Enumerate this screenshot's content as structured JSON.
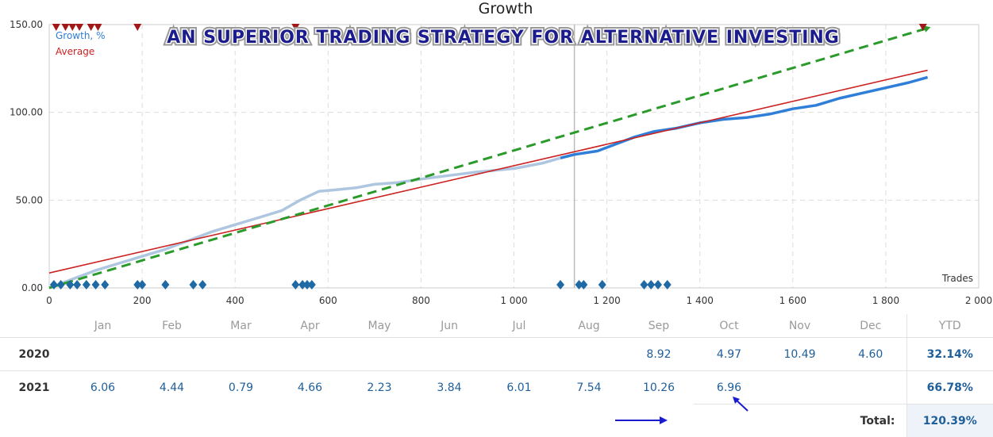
{
  "chart_data": {
    "type": "line",
    "title": "Growth",
    "banner": "AN SUPERIOR TRADING STRATEGY FOR ALTERNATIVE INVESTING",
    "xlabel": "Trades",
    "ylabel": "",
    "xlim": [
      0,
      2000
    ],
    "ylim": [
      0,
      150
    ],
    "x_ticks": [
      0,
      200,
      400,
      600,
      800,
      1000,
      1200,
      1400,
      1600,
      1800,
      2000
    ],
    "x_tick_labels": [
      "0",
      "200",
      "400",
      "600",
      "800",
      "1 000",
      "1 200",
      "1 400",
      "1 600",
      "1 800",
      "2 000"
    ],
    "y_ticks": [
      0,
      50,
      100,
      150
    ],
    "y_tick_labels": [
      "0.00",
      "50.00",
      "100.00",
      "150.00"
    ],
    "grid": true,
    "legend_position": "top-left",
    "marker_x": 1130,
    "series": [
      {
        "name": "Growth, %",
        "color": "#2f7ed8",
        "x": [
          0,
          30,
          60,
          100,
          150,
          200,
          250,
          300,
          350,
          400,
          450,
          500,
          540,
          580,
          620,
          660,
          700,
          750,
          800,
          860,
          920,
          1000,
          1060,
          1100,
          1130,
          1180,
          1220,
          1260,
          1300,
          1350,
          1400,
          1450,
          1500,
          1550,
          1600,
          1650,
          1700,
          1750,
          1800,
          1850,
          1890
        ],
        "y": [
          0,
          3,
          6,
          10,
          14,
          18,
          22,
          27,
          32,
          36,
          40,
          44,
          50,
          55,
          56,
          57,
          59,
          60,
          62,
          64,
          66,
          68,
          71,
          74,
          76,
          78,
          82,
          86,
          89,
          91,
          94,
          96,
          97,
          99,
          102,
          104,
          108,
          111,
          114,
          117,
          120
        ]
      },
      {
        "name": "Average",
        "color": "#cc2222",
        "x": [
          0,
          1890
        ],
        "y": [
          8.5,
          124
        ]
      },
      {
        "name": "",
        "color": "#2a9a2a",
        "x": [
          0,
          1890
        ],
        "y": [
          0,
          148
        ]
      }
    ],
    "deposit_markers_x": [
      10,
      25,
      45,
      60,
      80,
      100,
      120,
      190,
      200,
      250,
      310,
      330,
      530,
      545,
      555,
      565,
      1100,
      1140,
      1150,
      1190,
      1280,
      1295,
      1310,
      1330
    ],
    "withdrawal_markers_x": [
      15,
      35,
      50,
      65,
      90,
      105,
      190,
      530,
      1880
    ]
  },
  "monthly_table": {
    "months": [
      "Jan",
      "Feb",
      "Mar",
      "Apr",
      "May",
      "Jun",
      "Jul",
      "Aug",
      "Sep",
      "Oct",
      "Nov",
      "Dec"
    ],
    "ytd_label": "YTD",
    "rows": [
      {
        "year": "2020",
        "values": [
          "",
          "",
          "",
          "",
          "",
          "",
          "",
          "",
          "8.92",
          "4.97",
          "10.49",
          "4.60"
        ],
        "ytd": "32.14%"
      },
      {
        "year": "2021",
        "values": [
          "6.06",
          "4.44",
          "0.79",
          "4.66",
          "2.23",
          "3.84",
          "6.01",
          "7.54",
          "10.26",
          "6.96",
          "",
          ""
        ],
        "ytd": "66.78%"
      }
    ],
    "total_label": "Total:",
    "total_value": "120.39%"
  }
}
